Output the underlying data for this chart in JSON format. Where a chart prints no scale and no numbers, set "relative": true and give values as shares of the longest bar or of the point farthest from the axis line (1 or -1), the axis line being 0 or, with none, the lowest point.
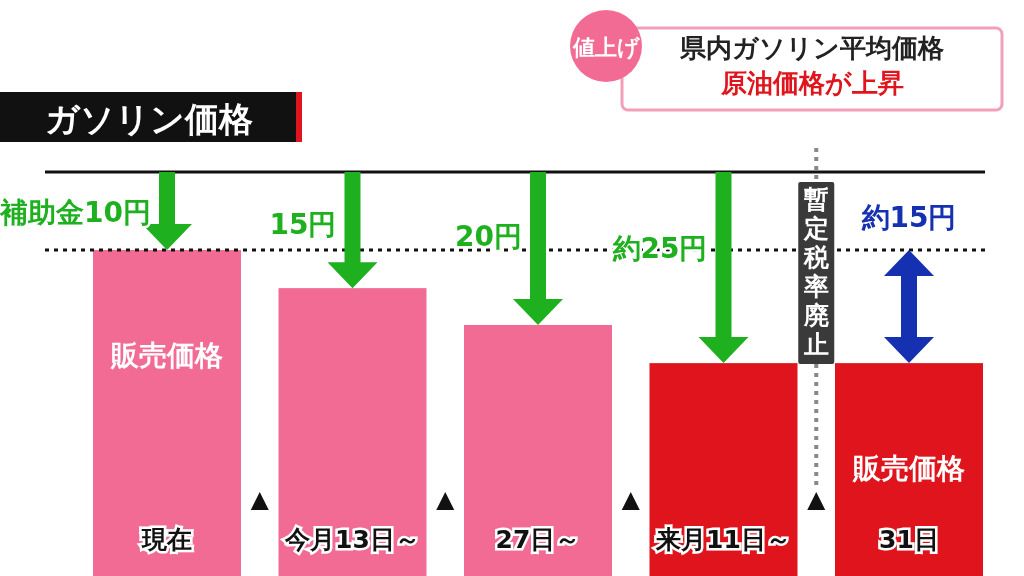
{
  "chart_data": {
    "type": "bar",
    "relative": true,
    "title": "ガソリン価格",
    "subtitle": "県内ガソリン平均価格",
    "categories": [
      "現在",
      "今月13日～",
      "27日～",
      "来月11日～",
      "31日"
    ],
    "values": [
      1,
      0.883,
      0.77,
      0.653,
      0.653
    ],
    "colors": [
      "#f26b95",
      "#f26b95",
      "#f26b95",
      "#e0141c",
      "#e0141c"
    ],
    "annotations": [
      "値上げ",
      "原油価格が上昇",
      "補助金10円",
      "15円",
      "20円",
      "約25円",
      "約15円",
      "販売価格",
      "販売価格",
      "暫定税率廃止"
    ],
    "ref_lines": [
      {
        "axis": "y",
        "value": 1.239,
        "color": "#111111",
        "line_style": "solid"
      },
      {
        "axis": "y",
        "value": 1,
        "color": "#111111",
        "line_style": "dotted"
      }
    ]
  }
}
